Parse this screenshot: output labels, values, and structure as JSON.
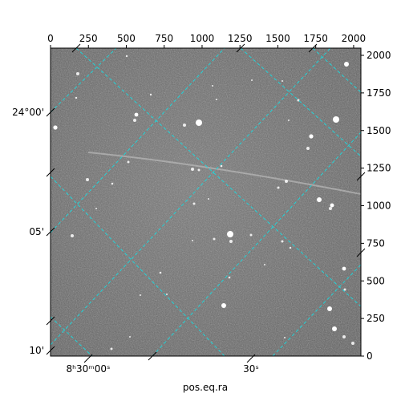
{
  "image": {
    "description_kind": "astronomical-exposure",
    "colors": {
      "background": "#6b6b6b",
      "grid": "#22d3d8",
      "frame": "#000000"
    },
    "pixel_axes": {
      "top_ticks": [
        "0",
        "250",
        "500",
        "750",
        "1000",
        "1250",
        "1500",
        "1750",
        "2000"
      ],
      "right_ticks": [
        "0",
        "250",
        "500",
        "750",
        "1000",
        "1250",
        "1500",
        "1750",
        "2000"
      ]
    },
    "coordinate_axes": {
      "left_ticks": [
        "24°00'",
        "05'",
        "10'"
      ],
      "bottom_ticks": [
        "8ʰ30ᵐ00ˢ",
        "30ˢ"
      ],
      "bottom_label": "pos.eq.ra"
    }
  }
}
